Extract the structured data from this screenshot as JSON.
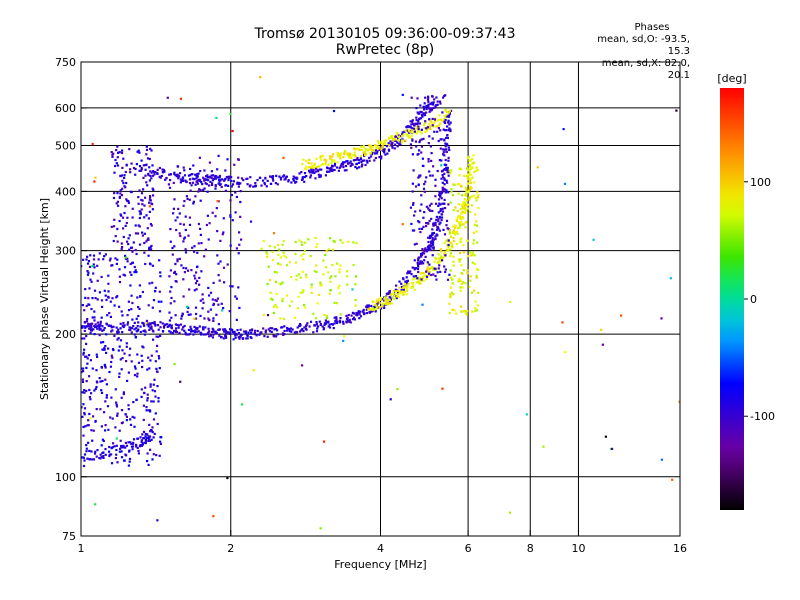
{
  "chart_data": {
    "type": "scatter",
    "title": "Tromsø 20130105 09:36:00-09:37:43",
    "subtitle": "RwPretec (8p)",
    "phase_stats": {
      "title": "Phases",
      "line_o": "mean, sd,O: -93.5, 15.3",
      "line_x": "mean, sd,X: 82.0, 20.1"
    },
    "xlabel": "Frequency [MHz]",
    "ylabel": "Stationary phase Virtual Height [km]",
    "x_scale": "log",
    "y_scale": "log",
    "xlim": [
      1,
      16
    ],
    "ylim": [
      75,
      750
    ],
    "x_ticks": [
      1,
      2,
      4,
      6,
      8,
      10,
      16
    ],
    "y_ticks": [
      75,
      100,
      200,
      300,
      400,
      500,
      600,
      750
    ],
    "grid": true,
    "colorbar": {
      "label": "[deg]",
      "range": [
        -180,
        180
      ],
      "ticks": [
        -100,
        0,
        100
      ],
      "colormap": "rainbow"
    },
    "traces": [
      {
        "name_hint": "o-trace E/F lower",
        "phase": -95,
        "points": [
          [
            1.0,
            210
          ],
          [
            1.05,
            208
          ],
          [
            1.1,
            207
          ],
          [
            1.2,
            206
          ],
          [
            1.3,
            207
          ],
          [
            1.4,
            208
          ],
          [
            1.5,
            207
          ],
          [
            1.6,
            205
          ],
          [
            1.7,
            203
          ],
          [
            1.8,
            202
          ],
          [
            1.9,
            201
          ],
          [
            2.0,
            200
          ],
          [
            2.1,
            200
          ],
          [
            2.2,
            201
          ],
          [
            2.4,
            202
          ],
          [
            2.6,
            204
          ],
          [
            2.8,
            206
          ],
          [
            3.0,
            208
          ],
          [
            3.2,
            211
          ],
          [
            3.4,
            214
          ],
          [
            3.6,
            219
          ],
          [
            3.8,
            225
          ],
          [
            4.0,
            232
          ],
          [
            4.2,
            241
          ],
          [
            4.4,
            252
          ],
          [
            4.6,
            266
          ],
          [
            4.8,
            283
          ],
          [
            5.0,
            305
          ],
          [
            5.1,
            322
          ],
          [
            5.2,
            343
          ],
          [
            5.3,
            372
          ],
          [
            5.35,
            410
          ],
          [
            5.4,
            460
          ],
          [
            5.45,
            520
          ],
          [
            5.5,
            600
          ]
        ]
      },
      {
        "name_hint": "o-trace Es upper",
        "phase": -95,
        "points": [
          [
            1.3,
            450
          ],
          [
            1.4,
            440
          ],
          [
            1.5,
            432
          ],
          [
            1.6,
            428
          ],
          [
            1.7,
            425
          ],
          [
            1.8,
            423
          ],
          [
            1.9,
            421
          ],
          [
            2.0,
            420
          ],
          [
            2.2,
            419
          ],
          [
            2.4,
            420
          ],
          [
            2.6,
            424
          ],
          [
            2.8,
            430
          ],
          [
            3.0,
            437
          ],
          [
            3.2,
            445
          ],
          [
            3.4,
            453
          ],
          [
            3.6,
            460
          ],
          [
            3.8,
            470
          ],
          [
            4.0,
            482
          ],
          [
            4.2,
            500
          ],
          [
            4.4,
            520
          ],
          [
            4.6,
            545
          ],
          [
            4.8,
            575
          ],
          [
            5.0,
            605
          ],
          [
            5.2,
            630
          ]
        ]
      },
      {
        "name_hint": "x-trace F",
        "phase": 82,
        "points": [
          [
            3.8,
            228
          ],
          [
            4.0,
            232
          ],
          [
            4.2,
            238
          ],
          [
            4.4,
            245
          ],
          [
            4.6,
            252
          ],
          [
            4.8,
            262
          ],
          [
            5.0,
            272
          ],
          [
            5.2,
            285
          ],
          [
            5.4,
            300
          ],
          [
            5.6,
            322
          ],
          [
            5.8,
            350
          ],
          [
            5.9,
            375
          ],
          [
            6.0,
            400
          ],
          [
            6.05,
            440
          ],
          [
            6.1,
            480
          ]
        ]
      },
      {
        "name_hint": "x-trace Es",
        "phase": 85,
        "points": [
          [
            2.8,
            455
          ],
          [
            3.0,
            462
          ],
          [
            3.2,
            470
          ],
          [
            3.4,
            478
          ],
          [
            3.6,
            486
          ],
          [
            3.8,
            494
          ],
          [
            4.0,
            502
          ],
          [
            4.3,
            515
          ],
          [
            4.6,
            530
          ],
          [
            4.9,
            545
          ],
          [
            5.2,
            560
          ],
          [
            5.5,
            590
          ]
        ]
      },
      {
        "name_hint": "low-freq band",
        "phase": -90,
        "points": [
          [
            1.0,
            110
          ],
          [
            1.1,
            112
          ],
          [
            1.2,
            115
          ],
          [
            1.3,
            118
          ],
          [
            1.35,
            121
          ],
          [
            1.4,
            125
          ]
        ]
      }
    ],
    "clusters": [
      {
        "name_hint": "low-freq column",
        "phase": -92,
        "x_range": [
          1.0,
          1.45
        ],
        "y_range": [
          105,
          300
        ],
        "count": 420
      },
      {
        "name_hint": "mid column 1",
        "phase": -98,
        "x_range": [
          1.15,
          1.4
        ],
        "y_range": [
          300,
          500
        ],
        "count": 160
      },
      {
        "name_hint": "mid column 2",
        "phase": -100,
        "x_range": [
          1.5,
          2.1
        ],
        "y_range": [
          210,
          480
        ],
        "count": 220
      },
      {
        "name_hint": "green patch",
        "phase": 70,
        "x_range": [
          2.3,
          3.6
        ],
        "y_range": [
          215,
          320
        ],
        "count": 140
      },
      {
        "name_hint": "cusp",
        "phase": -100,
        "x_range": [
          4.6,
          5.5
        ],
        "y_range": [
          260,
          640
        ],
        "count": 220
      },
      {
        "name_hint": "x cusp",
        "phase": 80,
        "x_range": [
          5.5,
          6.3
        ],
        "y_range": [
          220,
          450
        ],
        "count": 160
      }
    ]
  }
}
